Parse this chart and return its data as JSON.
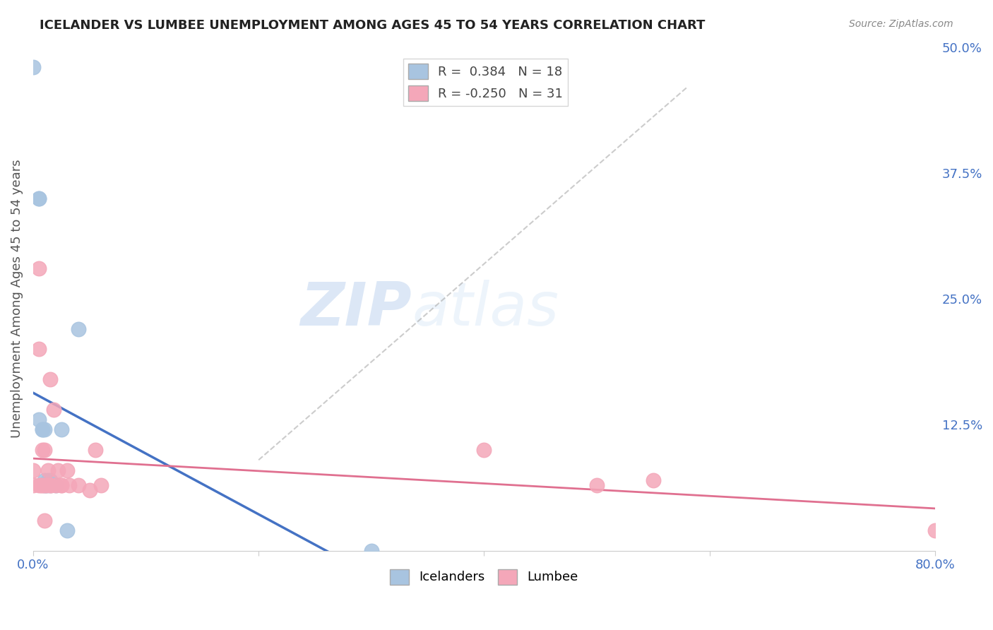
{
  "title": "ICELANDER VS LUMBEE UNEMPLOYMENT AMONG AGES 45 TO 54 YEARS CORRELATION CHART",
  "source": "Source: ZipAtlas.com",
  "ylabel": "Unemployment Among Ages 45 to 54 years",
  "xlim": [
    0,
    0.8
  ],
  "ylim": [
    0,
    0.5
  ],
  "watermark_zip": "ZIP",
  "watermark_atlas": "atlas",
  "icelanders_R": "0.384",
  "icelanders_N": "18",
  "lumbee_R": "-0.250",
  "lumbee_N": "31",
  "icelanders_color": "#a8c4e0",
  "lumbee_color": "#f4a7b9",
  "icelanders_line_color": "#4472c4",
  "lumbee_line_color": "#e07090",
  "icelanders_x": [
    0.0,
    0.005,
    0.005,
    0.005,
    0.008,
    0.008,
    0.01,
    0.01,
    0.01,
    0.012,
    0.013,
    0.015,
    0.015,
    0.02,
    0.025,
    0.03,
    0.04,
    0.3
  ],
  "icelanders_y": [
    0.48,
    0.35,
    0.35,
    0.13,
    0.12,
    0.12,
    0.12,
    0.07,
    0.065,
    0.065,
    0.07,
    0.07,
    0.065,
    0.065,
    0.12,
    0.02,
    0.22,
    0.0
  ],
  "lumbee_x": [
    0.0,
    0.0,
    0.005,
    0.005,
    0.005,
    0.007,
    0.008,
    0.008,
    0.01,
    0.01,
    0.01,
    0.012,
    0.013,
    0.015,
    0.015,
    0.016,
    0.018,
    0.02,
    0.022,
    0.025,
    0.025,
    0.03,
    0.032,
    0.04,
    0.05,
    0.055,
    0.06,
    0.4,
    0.5,
    0.55,
    0.8
  ],
  "lumbee_y": [
    0.08,
    0.065,
    0.28,
    0.2,
    0.065,
    0.065,
    0.1,
    0.065,
    0.1,
    0.065,
    0.03,
    0.065,
    0.08,
    0.065,
    0.17,
    0.065,
    0.14,
    0.065,
    0.08,
    0.065,
    0.065,
    0.08,
    0.065,
    0.065,
    0.06,
    0.1,
    0.065,
    0.1,
    0.065,
    0.07,
    0.02
  ],
  "background_color": "#ffffff",
  "grid_color": "#dddddd"
}
